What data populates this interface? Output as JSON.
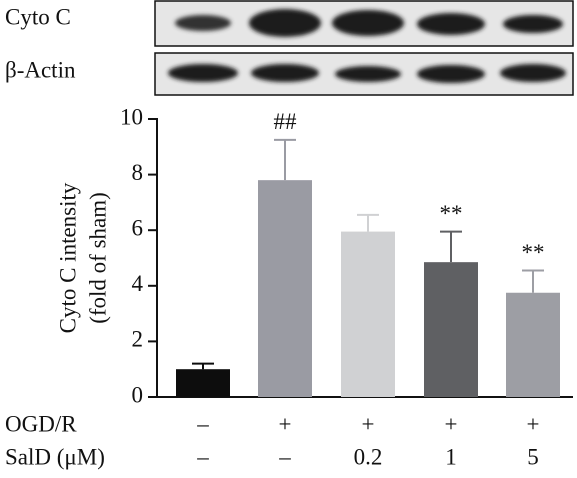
{
  "chart_data": {
    "type": "bar",
    "blots": [
      {
        "label": "Cyto C"
      },
      {
        "label": "β-Actin"
      }
    ],
    "ylabel": [
      "Cyto C intensity",
      "(fold of sham)"
    ],
    "values": [
      1.0,
      7.8,
      5.95,
      4.85,
      3.75
    ],
    "errors": [
      0.2,
      1.45,
      0.6,
      1.1,
      0.8
    ],
    "colors": [
      "#0d0d0d",
      "#9a9ba3",
      "#d0d1d3",
      "#5f6063",
      "#9d9ea4"
    ],
    "annotations": [
      null,
      "##",
      null,
      "**",
      "**"
    ],
    "groups": [
      {
        "name": "OGD/R",
        "labels": [
          "–",
          "+",
          "+",
          "+",
          "+"
        ]
      },
      {
        "name": "SalD (μM)",
        "labels": [
          "–",
          "–",
          "0.2",
          "1",
          "5"
        ]
      }
    ],
    "ylim": [
      0,
      10
    ],
    "yticks": [
      0,
      2,
      4,
      6,
      8,
      10
    ]
  }
}
